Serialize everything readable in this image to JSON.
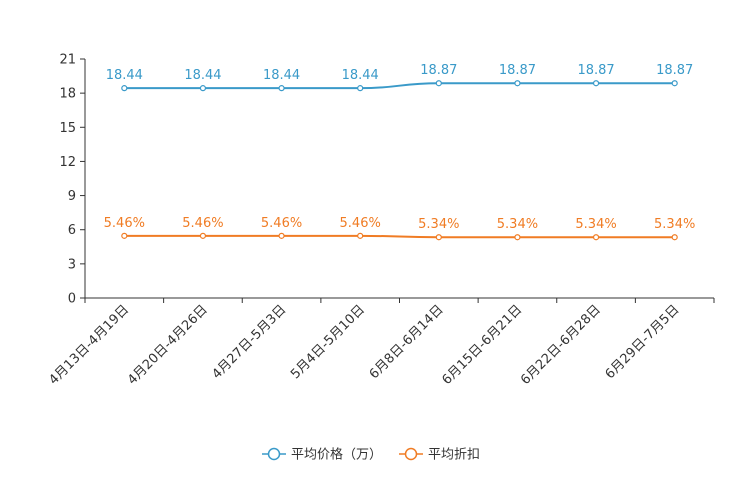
{
  "chart_data": {
    "type": "line",
    "title": "",
    "xlabel": "",
    "ylabel": "",
    "categories": [
      "4月13日-4月19日",
      "4月20日-4月26日",
      "4月27日-5月3日",
      "5月4日-5月10日",
      "6月8日-6月14日",
      "6月15日-6月21日",
      "6月22日-6月28日",
      "6月29日-7月5日"
    ],
    "ylim": [
      0,
      21
    ],
    "yticks": [
      0,
      3,
      6,
      9,
      12,
      15,
      18,
      21
    ],
    "grid": false,
    "legend_position": "bottom-center",
    "series": [
      {
        "name": "平均价格（万）",
        "color": "#3a9ac9",
        "values": [
          18.44,
          18.44,
          18.44,
          18.44,
          18.87,
          18.87,
          18.87,
          18.87
        ],
        "labels": [
          "18.44",
          "18.44",
          "18.44",
          "18.44",
          "18.87",
          "18.87",
          "18.87",
          "18.87"
        ]
      },
      {
        "name": "平均折扣",
        "color": "#f07c24",
        "values": [
          5.46,
          5.46,
          5.46,
          5.46,
          5.34,
          5.34,
          5.34,
          5.34
        ],
        "labels": [
          "5.46%",
          "5.46%",
          "5.46%",
          "5.46%",
          "5.34%",
          "5.34%",
          "5.34%",
          "5.34%"
        ]
      }
    ]
  }
}
